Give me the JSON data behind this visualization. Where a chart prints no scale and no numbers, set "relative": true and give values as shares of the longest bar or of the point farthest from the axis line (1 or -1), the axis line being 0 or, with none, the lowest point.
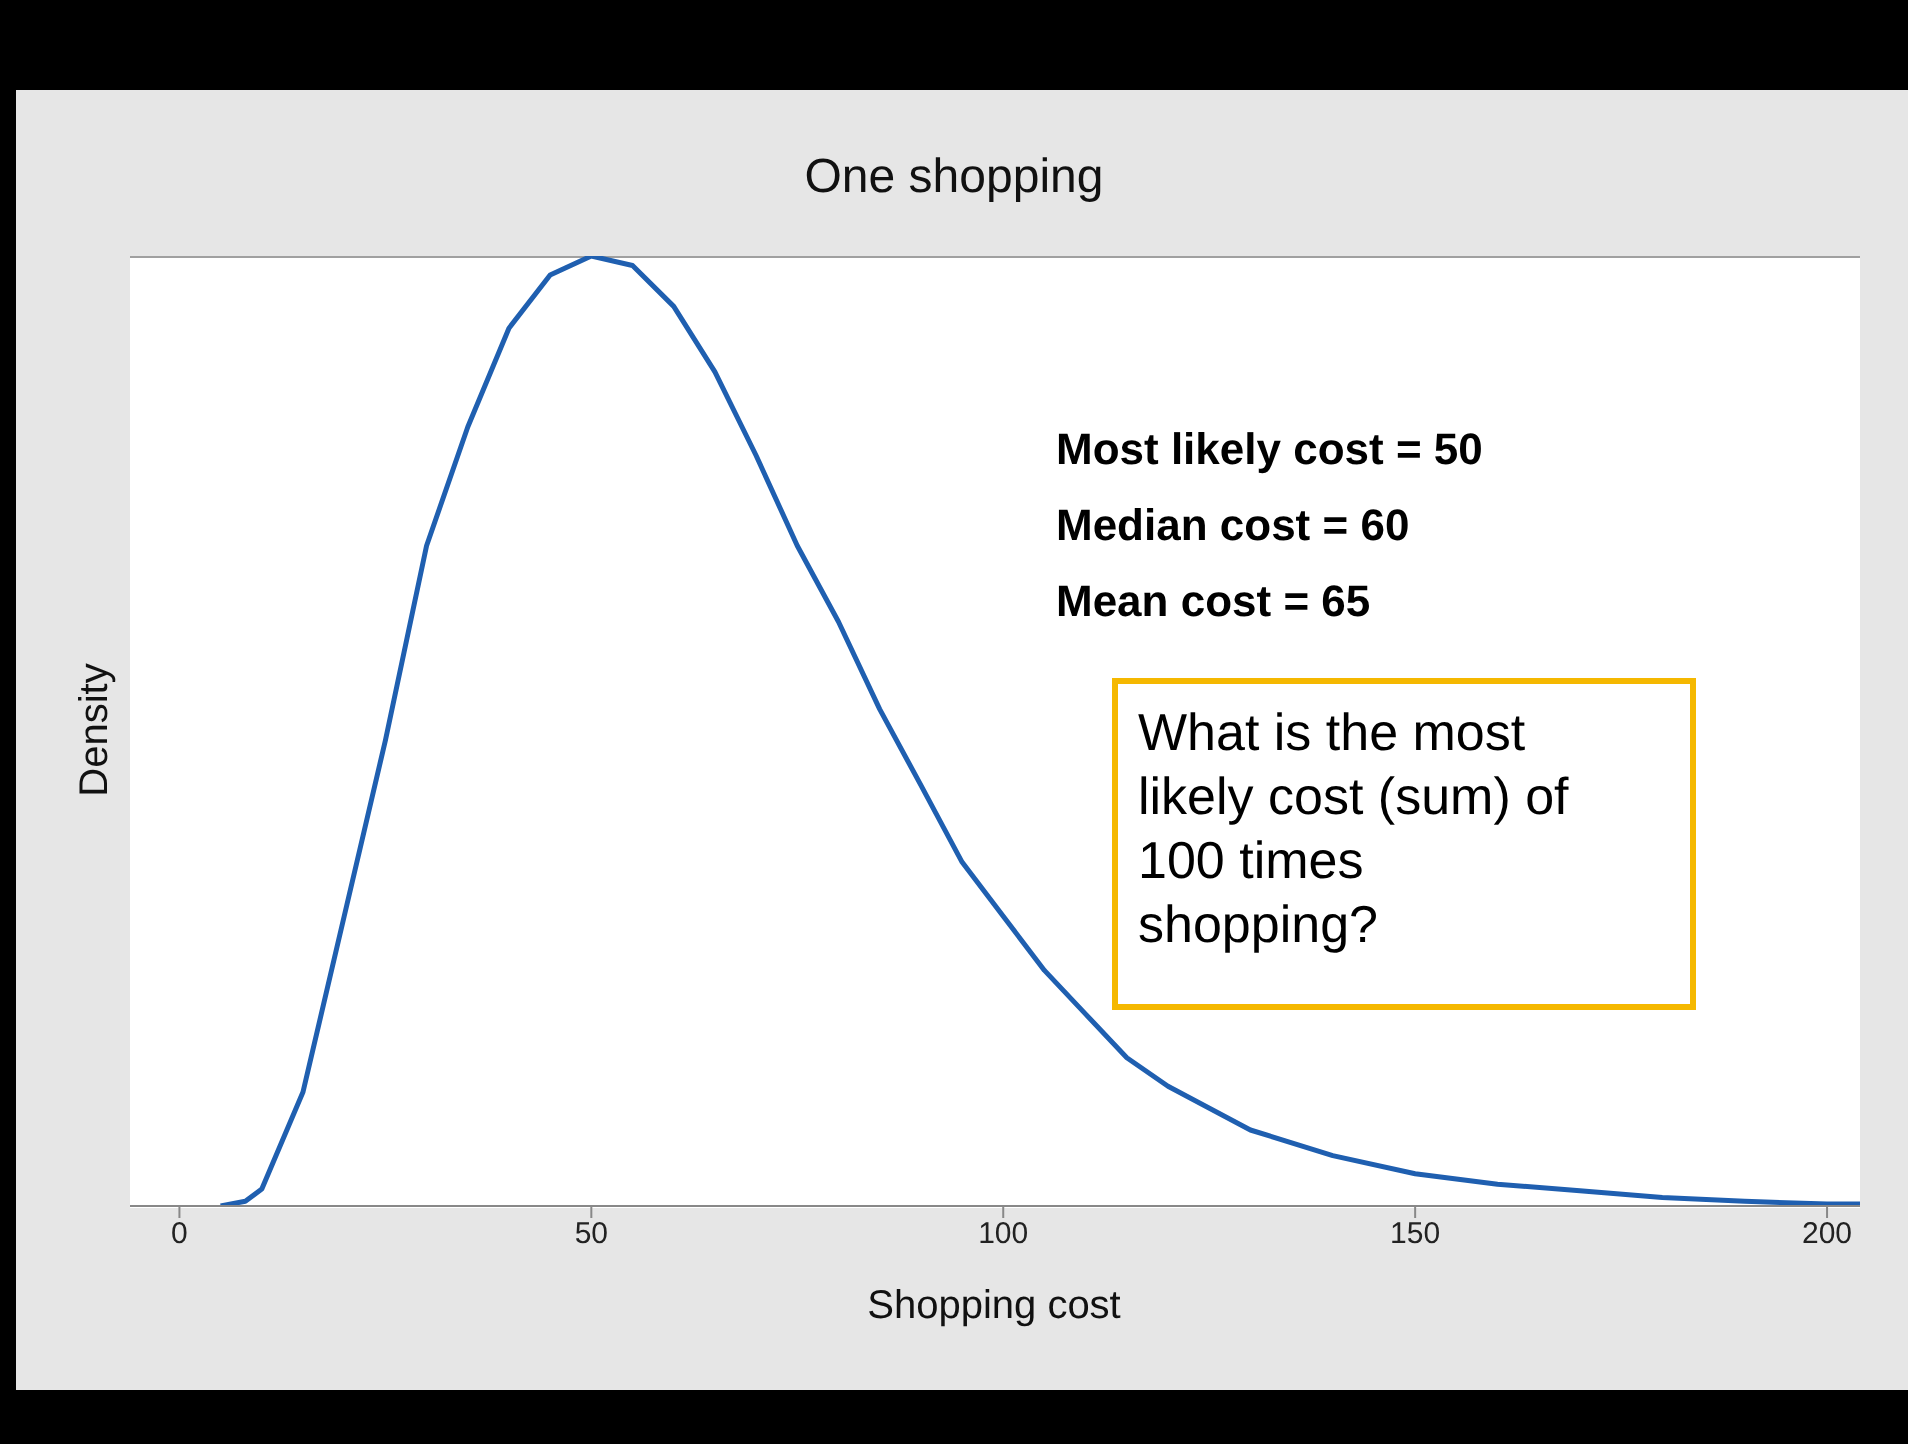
{
  "chart_data": {
    "type": "line",
    "title": "One shopping",
    "xlabel": "Shopping cost",
    "ylabel": "Density",
    "relative": true,
    "x": [
      5,
      8,
      10,
      15,
      20,
      25,
      30,
      35,
      40,
      45,
      50,
      55,
      60,
      65,
      70,
      75,
      80,
      85,
      90,
      95,
      100,
      105,
      110,
      115,
      120,
      130,
      140,
      150,
      160,
      170,
      180,
      190,
      200,
      204
    ],
    "series": [
      {
        "color": "#1f5fb0",
        "values": [
          0,
          0.005,
          0.018,
          0.12,
          0.305,
          0.49,
          0.695,
          0.82,
          0.924,
          0.98,
          1,
          0.99,
          0.947,
          0.878,
          0.79,
          0.695,
          0.615,
          0.523,
          0.443,
          0.362,
          0.305,
          0.248,
          0.202,
          0.156,
          0.126,
          0.08,
          0.053,
          0.034,
          0.023,
          0.016,
          0.009,
          0.005,
          0.002,
          0.002
        ]
      }
    ],
    "xlim": [
      -6,
      204
    ],
    "xticks": [
      0,
      50,
      100,
      150,
      200
    ],
    "grid": false,
    "legend": false,
    "marker": "none",
    "line_style": "solid",
    "annotations": [
      "Most likely cost = 50",
      "Median cost = 60",
      "Mean cost = 65",
      "What is the most likely cost (sum) of 100 times shopping?"
    ]
  }
}
